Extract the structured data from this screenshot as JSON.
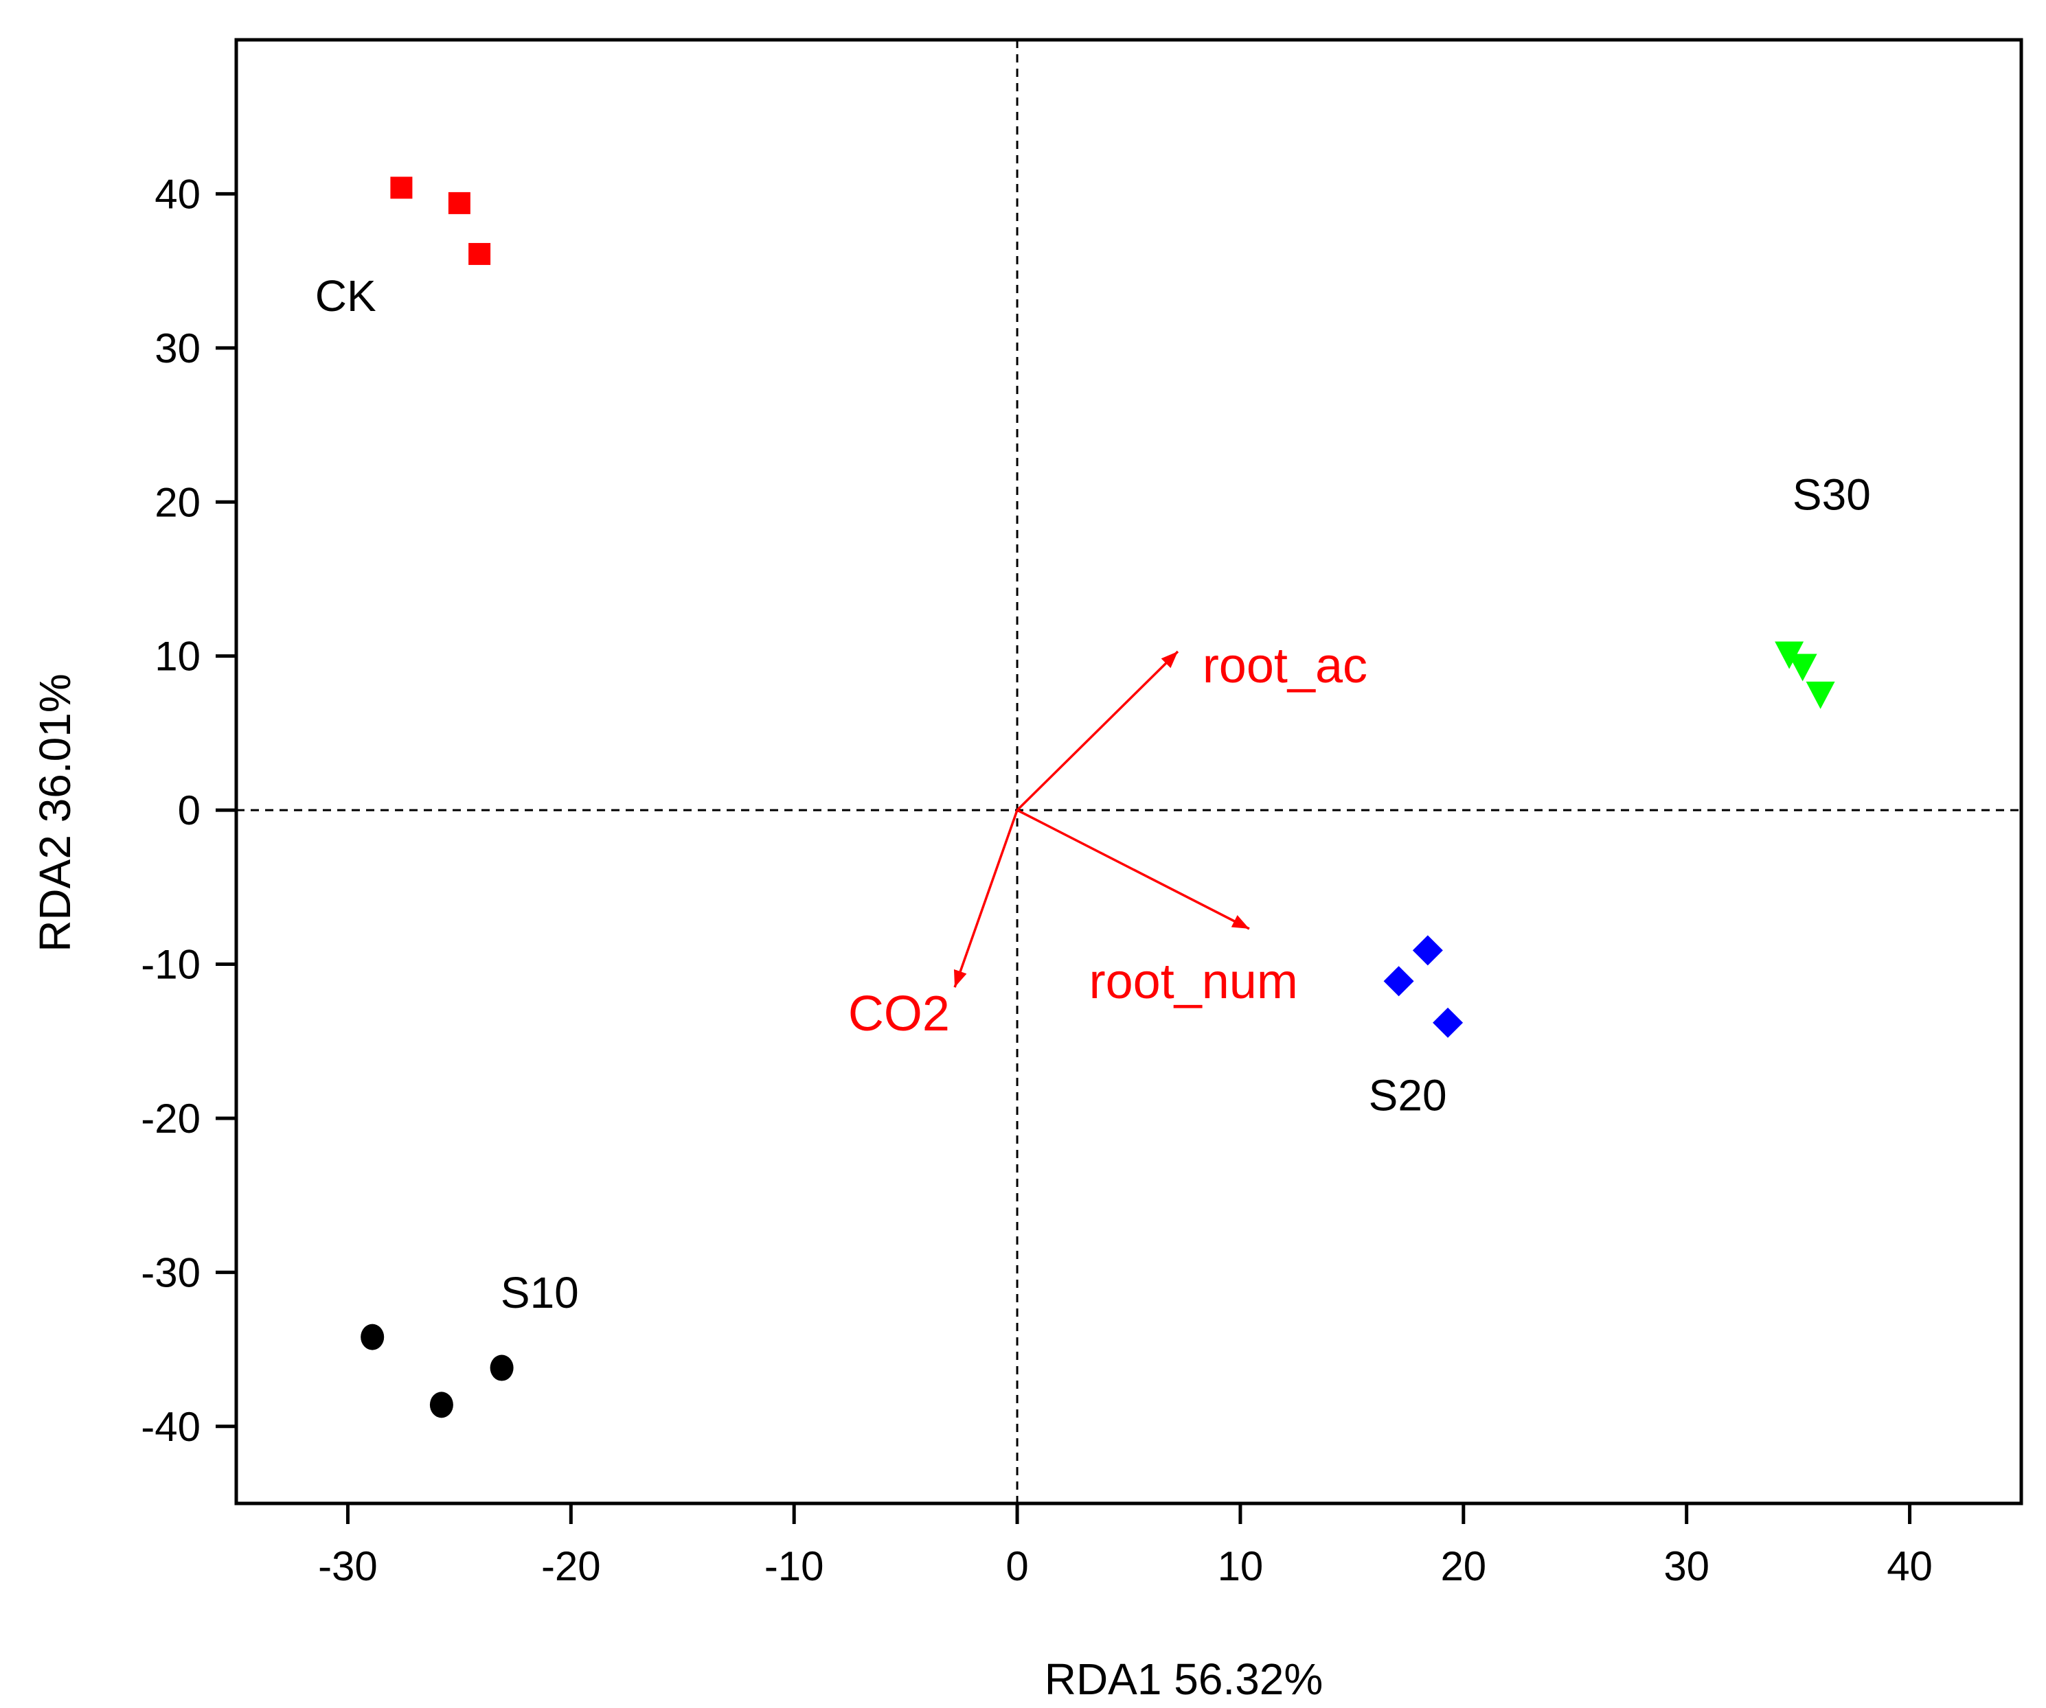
{
  "chart_data": {
    "type": "scatter",
    "title": "",
    "xlabel": "RDA1 56.32%",
    "ylabel": "RDA2  36.01%",
    "xlim": [
      -35,
      45
    ],
    "ylim": [
      -45,
      50
    ],
    "xticks": [
      -30,
      -20,
      -10,
      0,
      10,
      20,
      30,
      40
    ],
    "yticks": [
      -40,
      -30,
      -20,
      -10,
      0,
      10,
      20,
      30,
      40
    ],
    "xtick_labels": [
      "-30",
      "-20",
      "-10",
      "0",
      "10",
      "20",
      "30",
      "40"
    ],
    "ytick_labels": [
      "-40",
      "-30",
      "-20",
      "-10",
      "0",
      "10",
      "20",
      "30",
      "40"
    ],
    "grid": false,
    "reference_lines": {
      "x": 0,
      "y": 0,
      "style": "dashed"
    },
    "series": [
      {
        "name": "CK",
        "label": "CK",
        "marker": "square",
        "color": "#ff0000",
        "points": [
          [
            -27.6,
            40.4
          ],
          [
            -25.0,
            39.4
          ],
          [
            -24.1,
            36.1
          ]
        ],
        "label_anchor": [
          -30.1,
          32.4
        ]
      },
      {
        "name": "S10",
        "label": "S10",
        "marker": "circle",
        "color": "#000000",
        "points": [
          [
            -28.9,
            -34.2
          ],
          [
            -25.8,
            -38.6
          ],
          [
            -23.1,
            -36.2
          ]
        ],
        "label_anchor": [
          -21.4,
          -32.3
        ]
      },
      {
        "name": "S20",
        "label": "S20",
        "marker": "diamond",
        "color": "#0000ff",
        "points": [
          [
            18.4,
            -9.1
          ],
          [
            17.1,
            -11.1
          ],
          [
            19.3,
            -13.8
          ]
        ],
        "label_anchor": [
          17.5,
          -19.5
        ]
      },
      {
        "name": "S30",
        "label": "S30",
        "marker": "triangle-down",
        "color": "#00ff00",
        "points": [
          [
            34.6,
            10.1
          ],
          [
            35.2,
            9.3
          ],
          [
            36.0,
            7.5
          ]
        ],
        "label_anchor": [
          36.5,
          19.5
        ]
      }
    ],
    "vectors": [
      {
        "name": "root_ac",
        "label": "root_ac",
        "color": "#ff0000",
        "x": 7.2,
        "y": 10.3,
        "label_anchor": [
          12.0,
          8.3
        ]
      },
      {
        "name": "root_num",
        "label": "root_num",
        "color": "#ff0000",
        "x": 10.4,
        "y": -7.7,
        "label_anchor": [
          7.9,
          -12.2
        ]
      },
      {
        "name": "CO2",
        "label": "CO2",
        "color": "#ff0000",
        "x": -2.8,
        "y": -11.5,
        "label_anchor": [
          -5.3,
          -14.3
        ]
      }
    ]
  }
}
